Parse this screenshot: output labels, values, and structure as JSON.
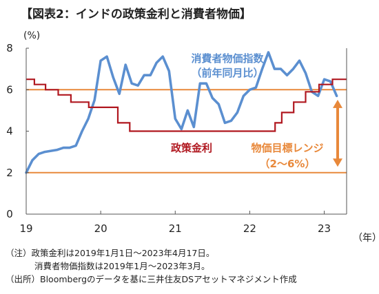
{
  "header": {
    "title": "【図表2：インドの政策金利と消費者物価】"
  },
  "axes": {
    "y_unit": "(%)",
    "x_unit": "（年）"
  },
  "notes": [
    "（注）政策金利は2019年1月1日～2023年4月17日。",
    "消費者物価指数は2019年1月～2023年3月。",
    "（出所）Bloombergのデータを基に三井住友DSアセットマネジメント作成"
  ],
  "chart_data": {
    "type": "line",
    "title": "",
    "xlabel": "（年）",
    "ylabel": "(%)",
    "xlim": [
      2019.0,
      2023.3
    ],
    "ylim": [
      0,
      8
    ],
    "x_ticks": [
      2019,
      2020,
      2021,
      2022,
      2023
    ],
    "x_tick_labels": [
      "19",
      "20",
      "21",
      "22",
      "23"
    ],
    "y_ticks": [
      0,
      2,
      4,
      6,
      8
    ],
    "y_tick_labels": [
      "0",
      "2",
      "4",
      "6",
      "8"
    ],
    "grid": false,
    "series": [
      {
        "name": "消費者物価指数",
        "label_lines": [
          "消費者物価指数",
          "（前年同月比）"
        ],
        "color": "#5b8fd0",
        "kind": "line",
        "x": [
          2019.0,
          2019.083,
          2019.167,
          2019.25,
          2019.333,
          2019.417,
          2019.5,
          2019.583,
          2019.667,
          2019.75,
          2019.833,
          2019.917,
          2020.0,
          2020.083,
          2020.167,
          2020.25,
          2020.333,
          2020.417,
          2020.5,
          2020.583,
          2020.667,
          2020.75,
          2020.833,
          2020.917,
          2021.0,
          2021.083,
          2021.167,
          2021.25,
          2021.333,
          2021.417,
          2021.5,
          2021.583,
          2021.667,
          2021.75,
          2021.833,
          2021.917,
          2022.0,
          2022.083,
          2022.167,
          2022.25,
          2022.333,
          2022.417,
          2022.5,
          2022.583,
          2022.667,
          2022.75,
          2022.833,
          2022.917,
          2023.0,
          2023.083,
          2023.167
        ],
        "y": [
          2.0,
          2.6,
          2.9,
          3.0,
          3.05,
          3.1,
          3.2,
          3.2,
          3.3,
          4.0,
          4.6,
          5.5,
          7.4,
          7.6,
          6.6,
          5.8,
          7.2,
          6.3,
          6.2,
          6.7,
          6.7,
          7.3,
          7.6,
          6.9,
          4.6,
          4.1,
          5.0,
          4.2,
          6.3,
          6.3,
          5.6,
          5.3,
          4.4,
          4.5,
          4.9,
          5.7,
          6.0,
          6.1,
          7.0,
          7.8,
          7.0,
          7.0,
          6.7,
          7.0,
          7.4,
          6.8,
          5.9,
          5.7,
          6.5,
          6.4,
          5.7
        ]
      },
      {
        "name": "政策金利",
        "label_lines": [
          "政策金利"
        ],
        "color": "#b0171f",
        "kind": "step",
        "x": [
          2019.0,
          2019.11,
          2019.26,
          2019.43,
          2019.6,
          2019.84,
          2020.23,
          2020.39,
          2022.34,
          2022.43,
          2022.59,
          2022.75,
          2022.93,
          2023.11,
          2023.3
        ],
        "y": [
          6.5,
          6.25,
          6.0,
          5.75,
          5.4,
          5.15,
          4.4,
          4.0,
          4.4,
          4.9,
          5.4,
          5.9,
          6.25,
          6.5,
          6.5
        ]
      }
    ],
    "target_band": {
      "name": "物価目標レンジ",
      "range_label": "（2～6%）",
      "low": 2,
      "high": 6,
      "color": "#e8883a"
    }
  },
  "colors": {
    "cpi": "#5b8fd0",
    "policy_rate": "#b0171f",
    "target": "#e8883a",
    "axis": "#555555"
  }
}
